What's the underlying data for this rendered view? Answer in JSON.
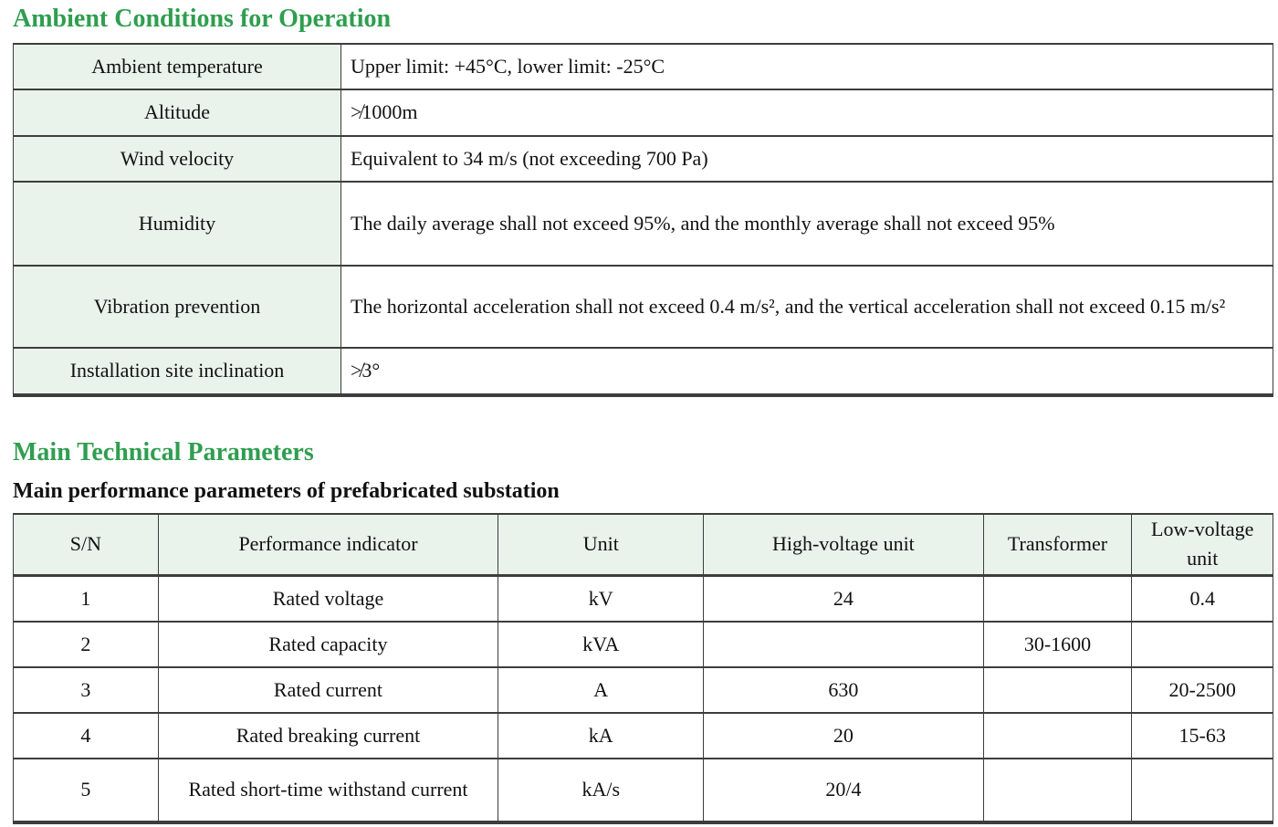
{
  "colors": {
    "heading_green": "#2f9e4f",
    "cell_green": "#e9f2eb",
    "border_dark": "#3d3d3d"
  },
  "section1": {
    "title": "Ambient Conditions for Operation",
    "table": {
      "rows": [
        {
          "label": "Ambient temperature",
          "value": "Upper limit: +45°C, lower limit: -25°C"
        },
        {
          "label": "Altitude",
          "value": "≯1000m"
        },
        {
          "label": "Wind velocity",
          "value": "Equivalent to 34 m/s (not exceeding 700 Pa)"
        },
        {
          "label": "Humidity",
          "value": "The daily average shall not exceed 95%, and the monthly average shall not exceed 95%"
        },
        {
          "label": "Vibration prevention",
          "value": "The horizontal acceleration shall not exceed 0.4 m/s², and the vertical acceleration shall not exceed 0.15 m/s²"
        },
        {
          "label": "Installation site inclination",
          "value": "≯3°"
        }
      ]
    }
  },
  "section2": {
    "title": "Main Technical Parameters",
    "subtitle": "Main performance parameters of prefabricated substation",
    "table": {
      "headers": [
        "S/N",
        "Performance indicator",
        "Unit",
        "High-voltage unit",
        "Transformer",
        "Low-voltage unit"
      ],
      "col_widths_pct": [
        11.5,
        27.0,
        16.3,
        22.2,
        11.8,
        11.2
      ],
      "rows": [
        [
          "1",
          "Rated voltage",
          "kV",
          "24",
          "",
          "0.4"
        ],
        [
          "2",
          "Rated capacity",
          "kVA",
          "",
          "30-1600",
          ""
        ],
        [
          "3",
          "Rated current",
          "A",
          "630",
          "",
          "20-2500"
        ],
        [
          "4",
          "Rated breaking current",
          "kA",
          "20",
          "",
          "15-63"
        ],
        [
          "5",
          "Rated short-time withstand current",
          "kA/s",
          "20/4",
          "",
          ""
        ]
      ]
    }
  }
}
